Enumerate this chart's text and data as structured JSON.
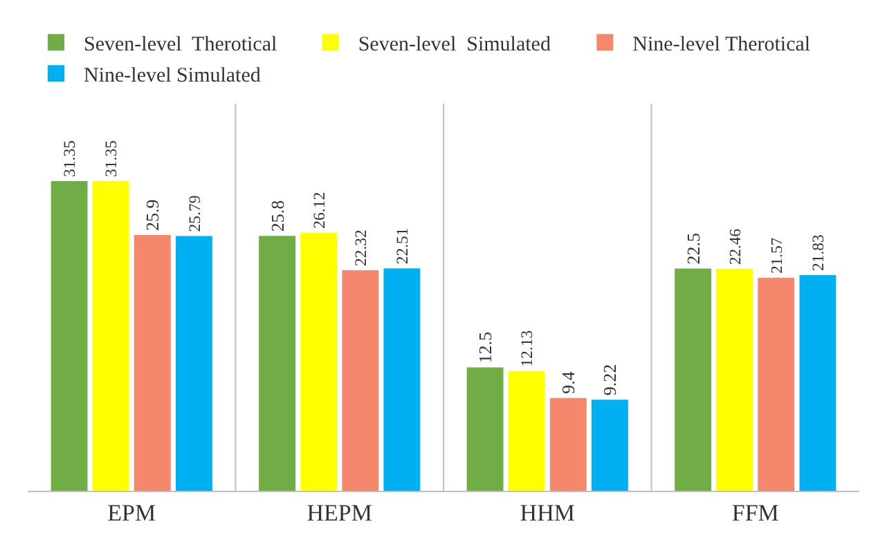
{
  "chart_data": {
    "type": "bar",
    "categories": [
      "EPM",
      "HEPM",
      "HHM",
      "FFM"
    ],
    "series": [
      {
        "name": "Seven-level  Therotical",
        "color": "#70ad47",
        "values": [
          31.35,
          25.8,
          12.5,
          22.5
        ]
      },
      {
        "name": "Seven-level  Simulated",
        "color": "#ffff00",
        "values": [
          31.35,
          26.12,
          12.13,
          22.46
        ]
      },
      {
        "name": "Nine-level Therotical",
        "color": "#f4876c",
        "values": [
          25.9,
          22.32,
          9.4,
          21.57
        ]
      },
      {
        "name": "Nine-level Simulated",
        "color": "#00b0f0",
        "values": [
          25.79,
          22.51,
          9.22,
          21.83
        ]
      }
    ],
    "data_labels": true,
    "grid": "x",
    "legend": "top"
  }
}
